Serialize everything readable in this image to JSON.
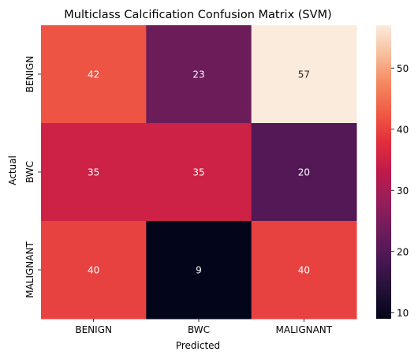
{
  "chart_data": {
    "type": "heatmap",
    "title": "Multiclass Calcification Confusion Matrix (SVM)",
    "xlabel": "Predicted",
    "ylabel": "Actual",
    "x_categories": [
      "BENIGN",
      "BWC",
      "MALIGNANT"
    ],
    "y_categories": [
      "BENIGN",
      "BWC",
      "MALIGNANT"
    ],
    "values": [
      [
        42,
        23,
        57
      ],
      [
        35,
        35,
        20
      ],
      [
        40,
        9,
        40
      ]
    ],
    "colormap": "rocket",
    "vmin": 9,
    "vmax": 57,
    "colorbar_ticks": [
      10,
      20,
      30,
      40,
      50
    ],
    "colorbar_tick_labels": [
      "10",
      "20",
      "30",
      "40",
      "50"
    ],
    "grid": false,
    "legend": "colorbar-right"
  }
}
